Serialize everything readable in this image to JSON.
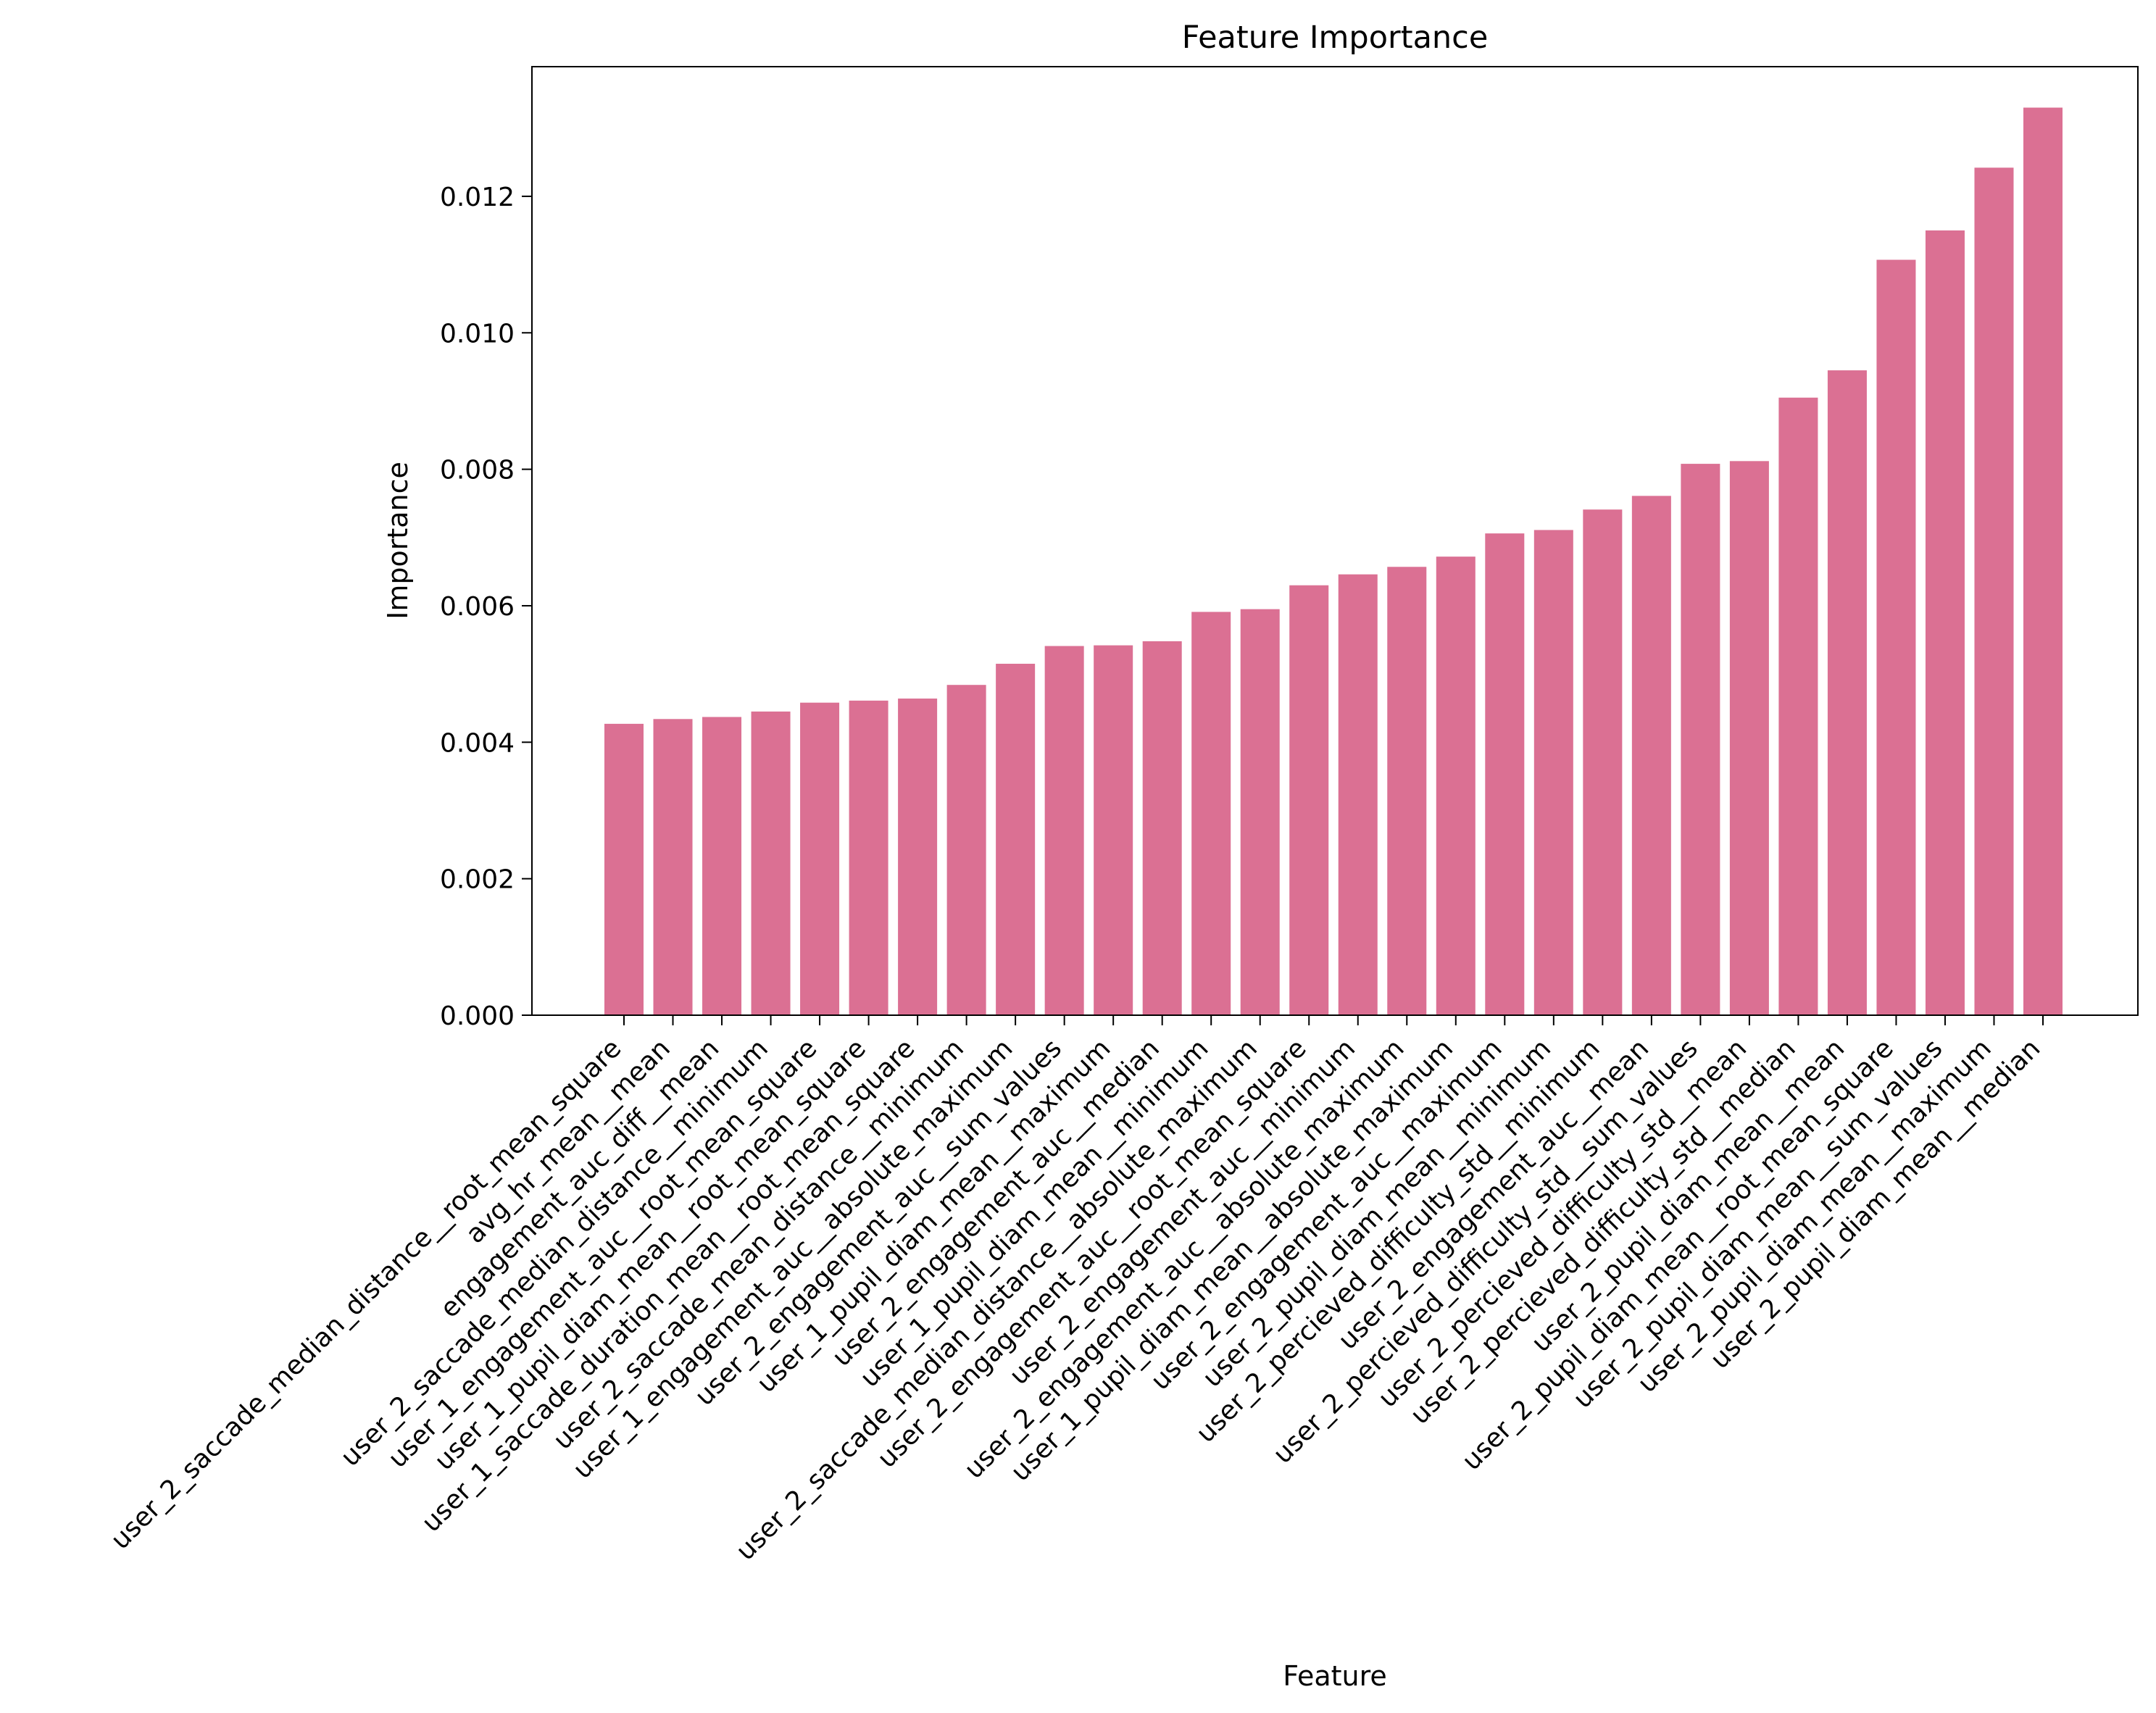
{
  "chart_data": {
    "type": "bar",
    "title": "Feature Importance",
    "xlabel": "Feature",
    "ylabel": "Importance",
    "ylim": [
      0,
      0.0139
    ],
    "yticks": [
      "0.000",
      "0.002",
      "0.004",
      "0.006",
      "0.008",
      "0.010",
      "0.012"
    ],
    "bar_color": "#db7093",
    "grid": false,
    "legend": "none",
    "categories": [
      "user_2_saccade_median_distance__root_mean_square",
      "avg_hr_mean__mean",
      "engagement_auc_diff__mean",
      "user_2_saccade_median_distance__minimum",
      "user_1_engagement_auc__root_mean_square",
      "user_1_pupil_diam_mean__root_mean_square",
      "user_1_saccade_duration_mean__root_mean_square",
      "user_2_saccade_mean_distance__minimum",
      "user_1_engagement_auc__absolute_maximum",
      "user_2_engagement_auc__sum_values",
      "user_1_pupil_diam_mean__maximum",
      "user_2_engagement_auc__median",
      "user_1_pupil_diam_mean__minimum",
      "user_2_saccade_median_distance__absolute_maximum",
      "user_2_engagement_auc__root_mean_square",
      "user_2_engagement_auc__minimum",
      "user_2_engagement_auc__absolute_maximum",
      "user_1_pupil_diam_mean__absolute_maximum",
      "user_2_engagement_auc__maximum",
      "user_2_pupil_diam_mean__minimum",
      "user_2_percieved_difficulty_std__minimum",
      "user_2_engagement_auc__mean",
      "user_2_percieved_difficulty_std__sum_values",
      "user_2_percieved_difficulty_std__mean",
      "user_2_percieved_difficulty_std__median",
      "user_2_pupil_diam_mean__mean",
      "user_2_pupil_diam_mean__root_mean_square",
      "user_2_pupil_diam_mean__sum_values",
      "user_2_pupil_diam_mean__maximum",
      "user_2_pupil_diam_mean__median"
    ],
    "values": [
      0.00427,
      0.00434,
      0.00437,
      0.00445,
      0.00458,
      0.00461,
      0.00464,
      0.00484,
      0.00515,
      0.00541,
      0.00542,
      0.00548,
      0.00591,
      0.00595,
      0.0063,
      0.00646,
      0.00657,
      0.00672,
      0.00706,
      0.00711,
      0.00741,
      0.00761,
      0.00808,
      0.00812,
      0.00905,
      0.00945,
      0.01107,
      0.0115,
      0.01242,
      0.0133
    ]
  }
}
